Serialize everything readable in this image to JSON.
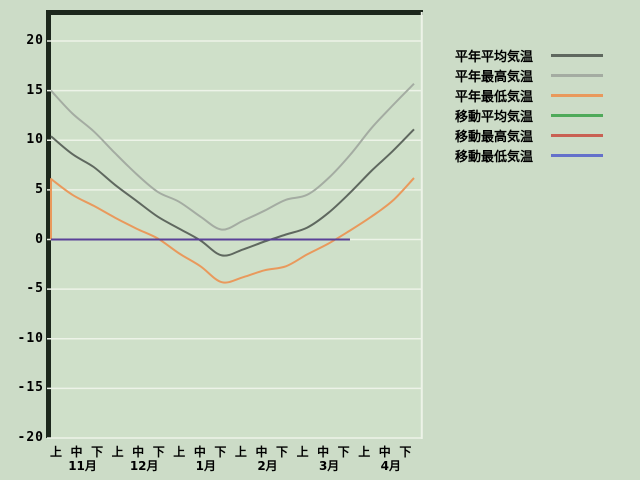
{
  "colors": {
    "page_bg": "#ccdcc7",
    "plot_bg": "#cfe0c9",
    "frame_dark": "#1c271c",
    "gridline": "#edf3e8",
    "text": "#000000",
    "moving_overlap_line": "#5a4198"
  },
  "chart_data": {
    "type": "line",
    "categories": [
      "11月上",
      "11月中",
      "11月下",
      "12月上",
      "12月中",
      "12月下",
      "1月上",
      "1月中",
      "1月下",
      "2月上",
      "2月中",
      "2月下",
      "3月上",
      "3月中",
      "3月下",
      "4月上",
      "4月中",
      "4月下"
    ],
    "x_tick_row_periods": [
      "上",
      "中",
      "下",
      "上",
      "中",
      "下",
      "上",
      "中",
      "下",
      "上",
      "中",
      "下",
      "上",
      "中",
      "下",
      "上",
      "中",
      "下"
    ],
    "x_tick_row_months": [
      "11月",
      "12月",
      "1月",
      "2月",
      "3月",
      "4月"
    ],
    "y_ticks": [
      20,
      15,
      10,
      5,
      0,
      -5,
      -10,
      -15,
      -20
    ],
    "y_tick_labels": [
      "20",
      "15",
      "10",
      "5",
      "0",
      "-5",
      "-10",
      "-15",
      "-20"
    ],
    "ylim": [
      -20,
      23
    ],
    "grid": true,
    "legend_position": "right",
    "series": [
      {
        "name": "平年平均気温",
        "color": "#5f685f",
        "values": [
          10.4,
          8.6,
          7.3,
          5.5,
          3.9,
          2.3,
          1.1,
          -0.1,
          -1.6,
          -1.0,
          -0.2,
          0.5,
          1.2,
          2.7,
          4.7,
          6.9,
          8.9,
          11.1
        ],
        "smooth": true
      },
      {
        "name": "平年最高気温",
        "color": "#a4aca2",
        "values": [
          15.0,
          12.7,
          10.9,
          8.7,
          6.6,
          4.8,
          3.8,
          2.3,
          1.0,
          1.9,
          2.9,
          4.0,
          4.5,
          6.2,
          8.5,
          11.2,
          13.5,
          15.7
        ],
        "smooth": true
      },
      {
        "name": "平年最低気温",
        "color": "#e9995c",
        "values": [
          6.1,
          4.5,
          3.4,
          2.2,
          1.1,
          0.1,
          -1.4,
          -2.7,
          -4.3,
          -3.8,
          -3.1,
          -2.7,
          -1.5,
          -0.4,
          0.9,
          2.3,
          3.9,
          6.2
        ],
        "smooth": true,
        "lead_in_from_zero": true
      },
      {
        "name": "移動平均気温",
        "color": "#4faa5a",
        "values": [
          0,
          0,
          0,
          0,
          0,
          0,
          0,
          0,
          0,
          0,
          0,
          0,
          0,
          0,
          0,
          null,
          null,
          null
        ]
      },
      {
        "name": "移動最高気温",
        "color": "#c96153",
        "values": [
          0,
          0,
          0,
          0,
          0,
          0,
          0,
          0,
          0,
          0,
          0,
          0,
          0,
          0,
          0,
          null,
          null,
          null
        ]
      },
      {
        "name": "移動最低気温",
        "color": "#6471cb",
        "chart_color": "#5a4198",
        "values": [
          0,
          0,
          0,
          0,
          0,
          0,
          0,
          0,
          0,
          0,
          0,
          0,
          0,
          0,
          0,
          null,
          null,
          null
        ]
      }
    ]
  }
}
